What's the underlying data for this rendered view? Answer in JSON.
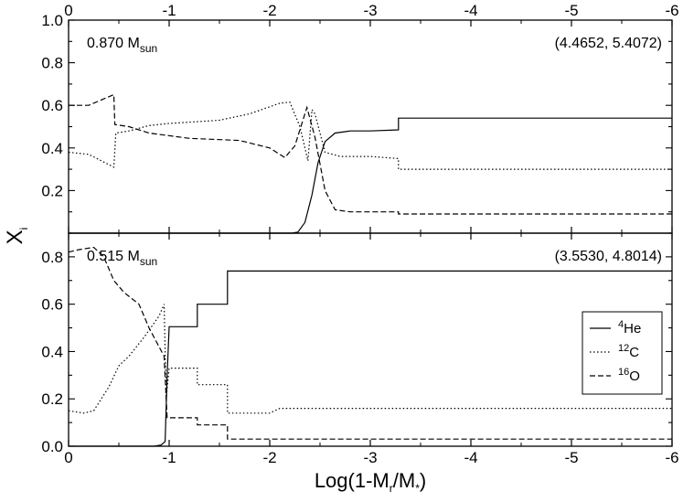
{
  "chart_data": [
    {
      "type": "line",
      "panel": "top",
      "annotation_left": {
        "text": "0.870 M",
        "sub": "sun"
      },
      "annotation_right": "(4.4652, 5.4072)",
      "xlim": [
        0,
        -6
      ],
      "ylim": [
        0,
        1.0
      ],
      "x_ticks": [
        0,
        -1,
        -2,
        -3,
        -4,
        -5,
        -6
      ],
      "x_tick_labels": [
        "0",
        "-1",
        "-2",
        "-3",
        "-4",
        "-5",
        "-6"
      ],
      "y_ticks": [
        0.2,
        0.4,
        0.6,
        0.8,
        1.0
      ],
      "y_tick_labels": [
        "0.2",
        "0.4",
        "0.6",
        "0.8",
        "1.0"
      ],
      "series": [
        {
          "id": "He4",
          "style": "solid",
          "points": [
            [
              0,
              0
            ],
            [
              -2.22,
              0
            ],
            [
              -2.28,
              0.005
            ],
            [
              -2.35,
              0.05
            ],
            [
              -2.42,
              0.18
            ],
            [
              -2.48,
              0.33
            ],
            [
              -2.55,
              0.43
            ],
            [
              -2.65,
              0.47
            ],
            [
              -2.8,
              0.48
            ],
            [
              -3.0,
              0.48
            ],
            [
              -3.28,
              0.485
            ],
            [
              -3.28,
              0.54
            ],
            [
              -4.0,
              0.54
            ],
            [
              -5.0,
              0.54
            ],
            [
              -6,
              0.54
            ]
          ]
        },
        {
          "id": "C12",
          "style": "dotted",
          "points": [
            [
              0,
              0.38
            ],
            [
              -0.2,
              0.37
            ],
            [
              -0.45,
              0.31
            ],
            [
              -0.47,
              0.47
            ],
            [
              -0.6,
              0.48
            ],
            [
              -0.8,
              0.505
            ],
            [
              -1.0,
              0.515
            ],
            [
              -1.5,
              0.53
            ],
            [
              -1.8,
              0.56
            ],
            [
              -2.1,
              0.61
            ],
            [
              -2.2,
              0.615
            ],
            [
              -2.3,
              0.5
            ],
            [
              -2.38,
              0.34
            ],
            [
              -2.42,
              0.58
            ],
            [
              -2.45,
              0.56
            ],
            [
              -2.55,
              0.38
            ],
            [
              -2.7,
              0.36
            ],
            [
              -3.0,
              0.36
            ],
            [
              -3.28,
              0.35
            ],
            [
              -3.28,
              0.3
            ],
            [
              -4.0,
              0.3
            ],
            [
              -5.0,
              0.3
            ],
            [
              -6,
              0.3
            ]
          ]
        },
        {
          "id": "O16",
          "style": "dashed",
          "points": [
            [
              0,
              0.6
            ],
            [
              -0.2,
              0.6
            ],
            [
              -0.3,
              0.62
            ],
            [
              -0.45,
              0.65
            ],
            [
              -0.46,
              0.51
            ],
            [
              -0.6,
              0.5
            ],
            [
              -0.8,
              0.47
            ],
            [
              -1.2,
              0.445
            ],
            [
              -1.7,
              0.435
            ],
            [
              -2.0,
              0.4
            ],
            [
              -2.15,
              0.355
            ],
            [
              -2.25,
              0.41
            ],
            [
              -2.33,
              0.53
            ],
            [
              -2.37,
              0.59
            ],
            [
              -2.45,
              0.45
            ],
            [
              -2.55,
              0.2
            ],
            [
              -2.65,
              0.11
            ],
            [
              -2.8,
              0.1
            ],
            [
              -3.28,
              0.1
            ],
            [
              -3.28,
              0.09
            ],
            [
              -6,
              0.09
            ]
          ]
        }
      ]
    },
    {
      "type": "line",
      "panel": "bottom",
      "annotation_left": {
        "text": "0.515 M",
        "sub": "sun"
      },
      "annotation_right": "(3.5530, 4.8014)",
      "xlim": [
        0,
        -6
      ],
      "ylim": [
        0,
        0.9
      ],
      "x_ticks": [
        0,
        -1,
        -2,
        -3,
        -4,
        -5,
        -6
      ],
      "x_tick_labels": [
        "0",
        "-1",
        "-2",
        "-3",
        "-4",
        "-5",
        "-6"
      ],
      "y_ticks": [
        0.0,
        0.2,
        0.4,
        0.6,
        0.8
      ],
      "y_tick_labels": [
        "0.0",
        "0.2",
        "0.4",
        "0.6",
        "0.8"
      ],
      "series": [
        {
          "id": "He4",
          "style": "solid",
          "points": [
            [
              0,
              0
            ],
            [
              -0.85,
              0
            ],
            [
              -0.92,
              0.005
            ],
            [
              -0.96,
              0.02
            ],
            [
              -0.98,
              0.3
            ],
            [
              -1.0,
              0.505
            ],
            [
              -1.28,
              0.505
            ],
            [
              -1.28,
              0.6
            ],
            [
              -1.58,
              0.6
            ],
            [
              -1.58,
              0.74
            ],
            [
              -6,
              0.74
            ]
          ]
        },
        {
          "id": "C12",
          "style": "dotted",
          "points": [
            [
              0,
              0.15
            ],
            [
              -0.15,
              0.14
            ],
            [
              -0.25,
              0.15
            ],
            [
              -0.4,
              0.25
            ],
            [
              -0.5,
              0.34
            ],
            [
              -0.6,
              0.38
            ],
            [
              -0.75,
              0.46
            ],
            [
              -0.9,
              0.55
            ],
            [
              -0.95,
              0.6
            ],
            [
              -0.97,
              0.2
            ],
            [
              -1.0,
              0.33
            ],
            [
              -1.28,
              0.33
            ],
            [
              -1.28,
              0.26
            ],
            [
              -1.58,
              0.26
            ],
            [
              -1.58,
              0.14
            ],
            [
              -2.0,
              0.14
            ],
            [
              -2.1,
              0.16
            ],
            [
              -6,
              0.16
            ]
          ]
        },
        {
          "id": "O16",
          "style": "dashed",
          "points": [
            [
              0,
              0.82
            ],
            [
              -0.1,
              0.83
            ],
            [
              -0.25,
              0.84
            ],
            [
              -0.35,
              0.8
            ],
            [
              -0.45,
              0.7
            ],
            [
              -0.55,
              0.65
            ],
            [
              -0.7,
              0.6
            ],
            [
              -0.8,
              0.5
            ],
            [
              -0.9,
              0.42
            ],
            [
              -0.95,
              0.38
            ],
            [
              -0.98,
              0.12
            ],
            [
              -1.28,
              0.12
            ],
            [
              -1.28,
              0.09
            ],
            [
              -1.58,
              0.09
            ],
            [
              -1.58,
              0.03
            ],
            [
              -6,
              0.03
            ]
          ]
        }
      ]
    }
  ],
  "axes": {
    "xlabel": {
      "pre": "Log(1-M",
      "sub1": "r",
      "mid": "/M",
      "sub2": "*",
      "post": ")"
    },
    "ylabel": {
      "main": "X",
      "sub": "i"
    }
  },
  "legend": {
    "placement": "bottom-right",
    "entries": [
      {
        "series": "He4",
        "sup": "4",
        "label": "He",
        "style": "solid"
      },
      {
        "series": "C12",
        "sup": "12",
        "label": "C",
        "style": "dotted"
      },
      {
        "series": "O16",
        "sup": "16",
        "label": "O",
        "style": "dashed"
      }
    ]
  },
  "colors": {
    "line": "#000000",
    "background": "#ffffff"
  }
}
